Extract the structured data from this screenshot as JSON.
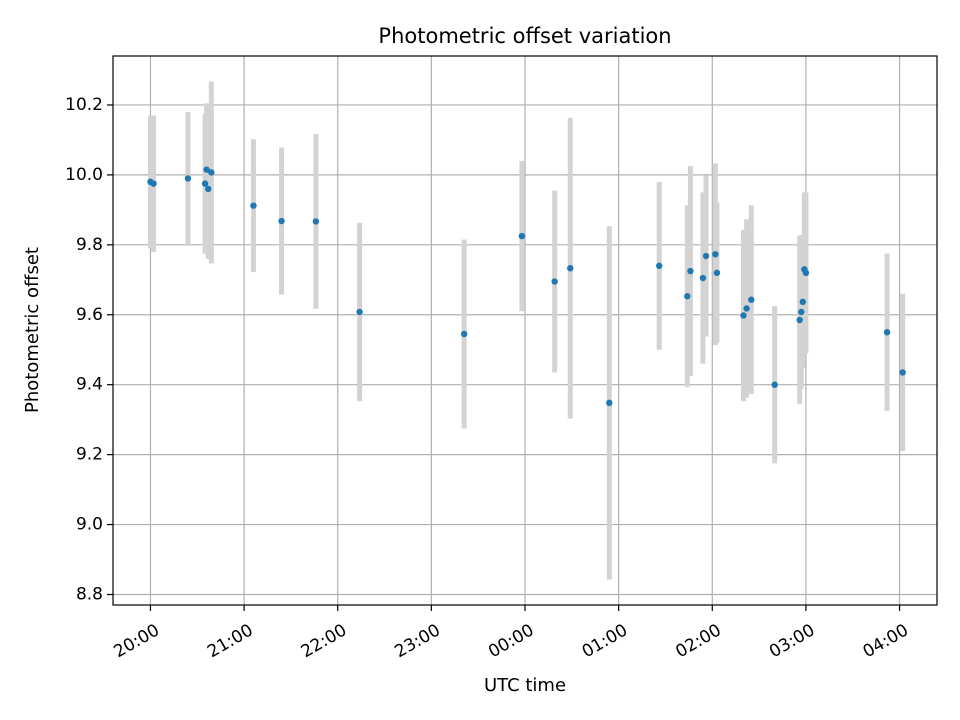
{
  "chart_data": {
    "type": "scatter",
    "title": "Photometric offset variation",
    "xlabel": "UTC time",
    "ylabel": "Photometric offset",
    "x_unit": "hours",
    "xlim": [
      "19:36",
      "04:24"
    ],
    "ylim": [
      8.77,
      10.34
    ],
    "x_ticks": [
      "20:00",
      "21:00",
      "22:00",
      "23:00",
      "00:00",
      "01:00",
      "02:00",
      "03:00",
      "04:00"
    ],
    "y_ticks": [
      "8.8",
      "9.0",
      "9.2",
      "9.4",
      "9.6",
      "9.8",
      "10.0",
      "10.2"
    ],
    "grid": true,
    "marker_color": "#1f77b4",
    "errorbar_color": "#d3d3d3",
    "points": [
      {
        "x": "20:00",
        "y": 9.98,
        "err": 0.19
      },
      {
        "x": "20:02",
        "y": 9.975,
        "err": 0.195
      },
      {
        "x": "20:24",
        "y": 9.99,
        "err": 0.19
      },
      {
        "x": "20:35",
        "y": 9.975,
        "err": 0.2
      },
      {
        "x": "20:36",
        "y": 10.015,
        "err": 0.19
      },
      {
        "x": "20:37",
        "y": 9.96,
        "err": 0.2
      },
      {
        "x": "20:39",
        "y": 10.007,
        "err": 0.26
      },
      {
        "x": "21:06",
        "y": 9.912,
        "err": 0.19
      },
      {
        "x": "21:24",
        "y": 9.868,
        "err": 0.21
      },
      {
        "x": "21:46",
        "y": 9.867,
        "err": 0.25
      },
      {
        "x": "22:14",
        "y": 9.608,
        "err": 0.255
      },
      {
        "x": "23:21",
        "y": 9.545,
        "err": 0.27
      },
      {
        "x": "23:58",
        "y": 9.825,
        "err": 0.215
      },
      {
        "x": "00:19",
        "y": 9.695,
        "err": 0.26
      },
      {
        "x": "00:29",
        "y": 9.733,
        "err": 0.43
      },
      {
        "x": "00:54",
        "y": 9.348,
        "err": 0.505
      },
      {
        "x": "01:26",
        "y": 9.74,
        "err": 0.24
      },
      {
        "x": "01:44",
        "y": 9.653,
        "err": 0.26
      },
      {
        "x": "01:46",
        "y": 9.725,
        "err": 0.3
      },
      {
        "x": "01:54",
        "y": 9.705,
        "err": 0.245
      },
      {
        "x": "01:56",
        "y": 9.768,
        "err": 0.23
      },
      {
        "x": "02:02",
        "y": 9.773,
        "err": 0.26
      },
      {
        "x": "02:03",
        "y": 9.72,
        "err": 0.2
      },
      {
        "x": "02:20",
        "y": 9.598,
        "err": 0.245
      },
      {
        "x": "02:22",
        "y": 9.618,
        "err": 0.255
      },
      {
        "x": "02:25",
        "y": 9.643,
        "err": 0.27
      },
      {
        "x": "02:40",
        "y": 9.4,
        "err": 0.225
      },
      {
        "x": "02:56",
        "y": 9.585,
        "err": 0.24
      },
      {
        "x": "02:57",
        "y": 9.608,
        "err": 0.22
      },
      {
        "x": "02:58",
        "y": 9.637,
        "err": 0.19
      },
      {
        "x": "02:59",
        "y": 9.73,
        "err": 0.22
      },
      {
        "x": "03:00",
        "y": 9.72,
        "err": 0.23
      },
      {
        "x": "03:52",
        "y": 9.55,
        "err": 0.225
      },
      {
        "x": "04:02",
        "y": 9.435,
        "err": 0.225
      }
    ]
  }
}
